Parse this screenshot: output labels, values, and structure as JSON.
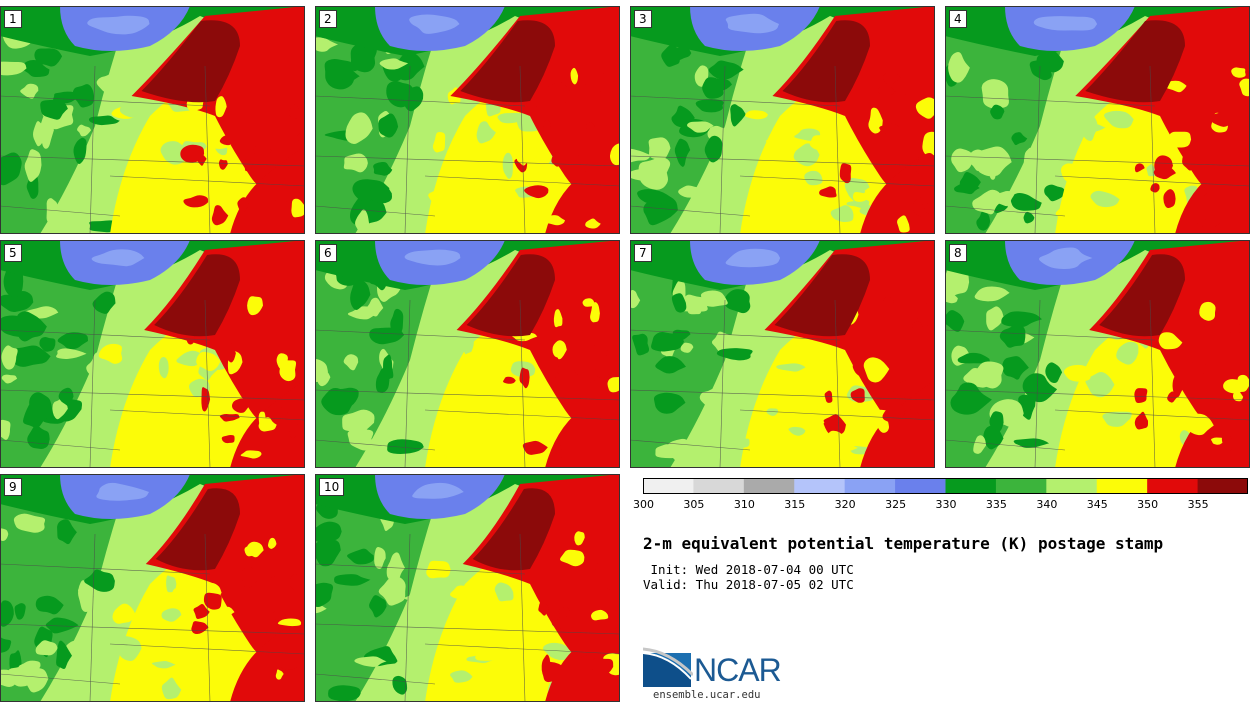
{
  "panels": [
    {
      "label": "1"
    },
    {
      "label": "2"
    },
    {
      "label": "3"
    },
    {
      "label": "4"
    },
    {
      "label": "5"
    },
    {
      "label": "6"
    },
    {
      "label": "7"
    },
    {
      "label": "8"
    },
    {
      "label": "9"
    },
    {
      "label": "10"
    }
  ],
  "colorbar": {
    "ticks": [
      "300",
      "305",
      "310",
      "315",
      "320",
      "325",
      "330",
      "335",
      "340",
      "345",
      "350",
      "355"
    ],
    "colors": [
      "#f0f0f0",
      "#d8d8d8",
      "#aaaaaa",
      "#b4c4fa",
      "#8aa2f4",
      "#6a80ec",
      "#069a1e",
      "#3cb43c",
      "#b4f06e",
      "#fcfc08",
      "#e10a0a",
      "#8c0a0a"
    ]
  },
  "title": "2-m equivalent potential temperature (K) postage stamp",
  "init_text": " Init: Wed 2018-07-04 00 UTC",
  "valid_text": "Valid: Thu 2018-07-05 02 UTC",
  "logo": {
    "name": "NCAR",
    "url": "ensemble.ucar.edu"
  }
}
